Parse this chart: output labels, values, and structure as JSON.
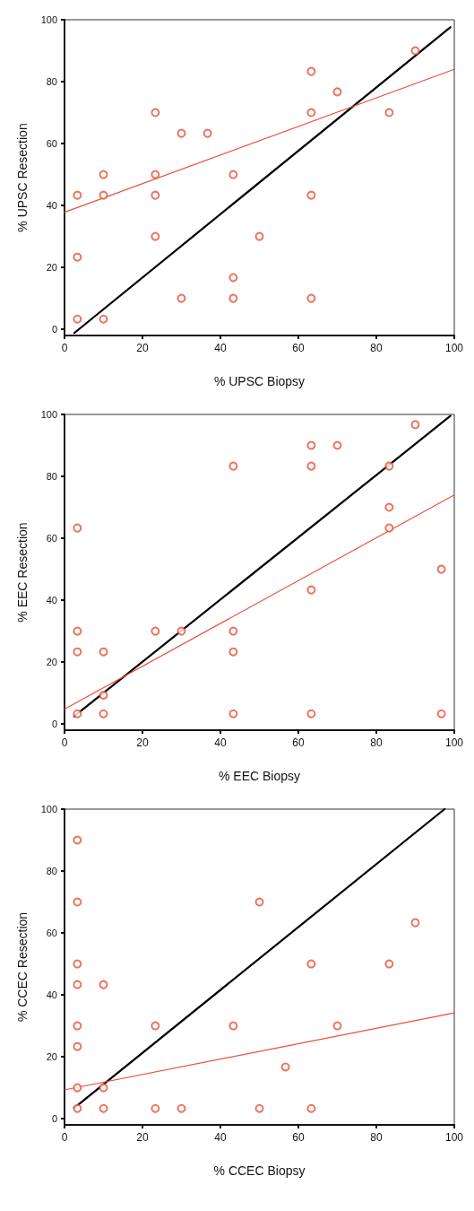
{
  "chart_data": [
    {
      "type": "scatter",
      "xlabel": "% UPSC Biopsy",
      "ylabel": "% UPSC Resection",
      "xlim": [
        0,
        100
      ],
      "ylim": [
        -2,
        100
      ],
      "xticks": [
        0,
        20,
        40,
        60,
        80,
        100
      ],
      "yticks": [
        0,
        20,
        40,
        60,
        80,
        100
      ],
      "grid": false,
      "line_style": "solid",
      "series": [
        {
          "marker": "circle",
          "color": "#e8503a",
          "x": [
            3.3,
            3.3,
            3.3,
            10,
            10,
            10,
            23.3,
            23.3,
            23.3,
            23.3,
            30,
            30,
            36.7,
            43.3,
            43.3,
            43.3,
            50,
            63.3,
            63.3,
            63.3,
            63.3,
            70,
            83.3,
            90
          ],
          "values": [
            43.3,
            23.3,
            3.3,
            50,
            43.3,
            3.3,
            70,
            50,
            43.3,
            30,
            63.3,
            10,
            63.3,
            50,
            16.7,
            10,
            30,
            83.3,
            70,
            43.3,
            10,
            76.7,
            70,
            90
          ]
        },
        {
          "type": "line",
          "color": "#000000",
          "x": [
            2.5,
            99
          ],
          "values": [
            -1.2,
            97.6
          ]
        },
        {
          "type": "line",
          "color": "#e8503a",
          "x": [
            0,
            100
          ],
          "values": [
            37.8,
            84
          ]
        }
      ]
    },
    {
      "type": "scatter",
      "xlabel": "% EEC Biopsy",
      "ylabel": "% EEC Resection",
      "xlim": [
        0,
        100
      ],
      "ylim": [
        -2,
        100
      ],
      "xticks": [
        0,
        20,
        40,
        60,
        80,
        100
      ],
      "yticks": [
        0,
        20,
        40,
        60,
        80,
        100
      ],
      "grid": false,
      "line_style": "solid",
      "series": [
        {
          "marker": "circle",
          "color": "#e8503a",
          "x": [
            3.3,
            3.3,
            3.3,
            3.3,
            10,
            10,
            10,
            23.3,
            30,
            43.3,
            43.3,
            43.3,
            43.3,
            63.3,
            63.3,
            63.3,
            63.3,
            70,
            83.3,
            83.3,
            83.3,
            90,
            96.7,
            96.7
          ],
          "values": [
            63.3,
            30,
            23.3,
            3.3,
            23.3,
            9.3,
            3.3,
            30,
            30,
            83.3,
            30,
            23.3,
            3.3,
            90,
            83.3,
            43.3,
            3.3,
            90,
            83.3,
            70,
            63.3,
            96.7,
            50,
            3.3
          ]
        },
        {
          "type": "line",
          "color": "#000000",
          "x": [
            2.5,
            99
          ],
          "values": [
            2.5,
            99.5
          ]
        },
        {
          "type": "line",
          "color": "#e8503a",
          "x": [
            0,
            100
          ],
          "values": [
            4.8,
            74
          ]
        }
      ]
    },
    {
      "type": "scatter",
      "xlabel": "% CCEC Biopsy",
      "ylabel": "% CCEC Resection",
      "xlim": [
        0,
        100
      ],
      "ylim": [
        -2,
        100
      ],
      "xticks": [
        0,
        20,
        40,
        60,
        80,
        100
      ],
      "yticks": [
        0,
        20,
        40,
        60,
        80,
        100
      ],
      "grid": false,
      "line_style": "solid",
      "series": [
        {
          "marker": "circle",
          "color": "#e8503a",
          "x": [
            3.3,
            3.3,
            3.3,
            3.3,
            3.3,
            3.3,
            3.3,
            3.3,
            10,
            10,
            10,
            23.3,
            23.3,
            30,
            43.3,
            50,
            50,
            56.7,
            63.3,
            63.3,
            70,
            83.3,
            90
          ],
          "values": [
            90,
            70,
            50,
            43.3,
            30,
            23.3,
            10,
            3.3,
            43.3,
            10,
            3.3,
            30,
            3.3,
            3.3,
            30,
            70,
            3.3,
            16.7,
            50,
            3.3,
            30,
            50,
            63.3
          ]
        },
        {
          "type": "line",
          "color": "#000000",
          "x": [
            2.5,
            97.5
          ],
          "values": [
            3.5,
            100
          ]
        },
        {
          "type": "line",
          "color": "#e8503a",
          "x": [
            0,
            100
          ],
          "values": [
            9.3,
            34.2
          ]
        }
      ]
    }
  ]
}
